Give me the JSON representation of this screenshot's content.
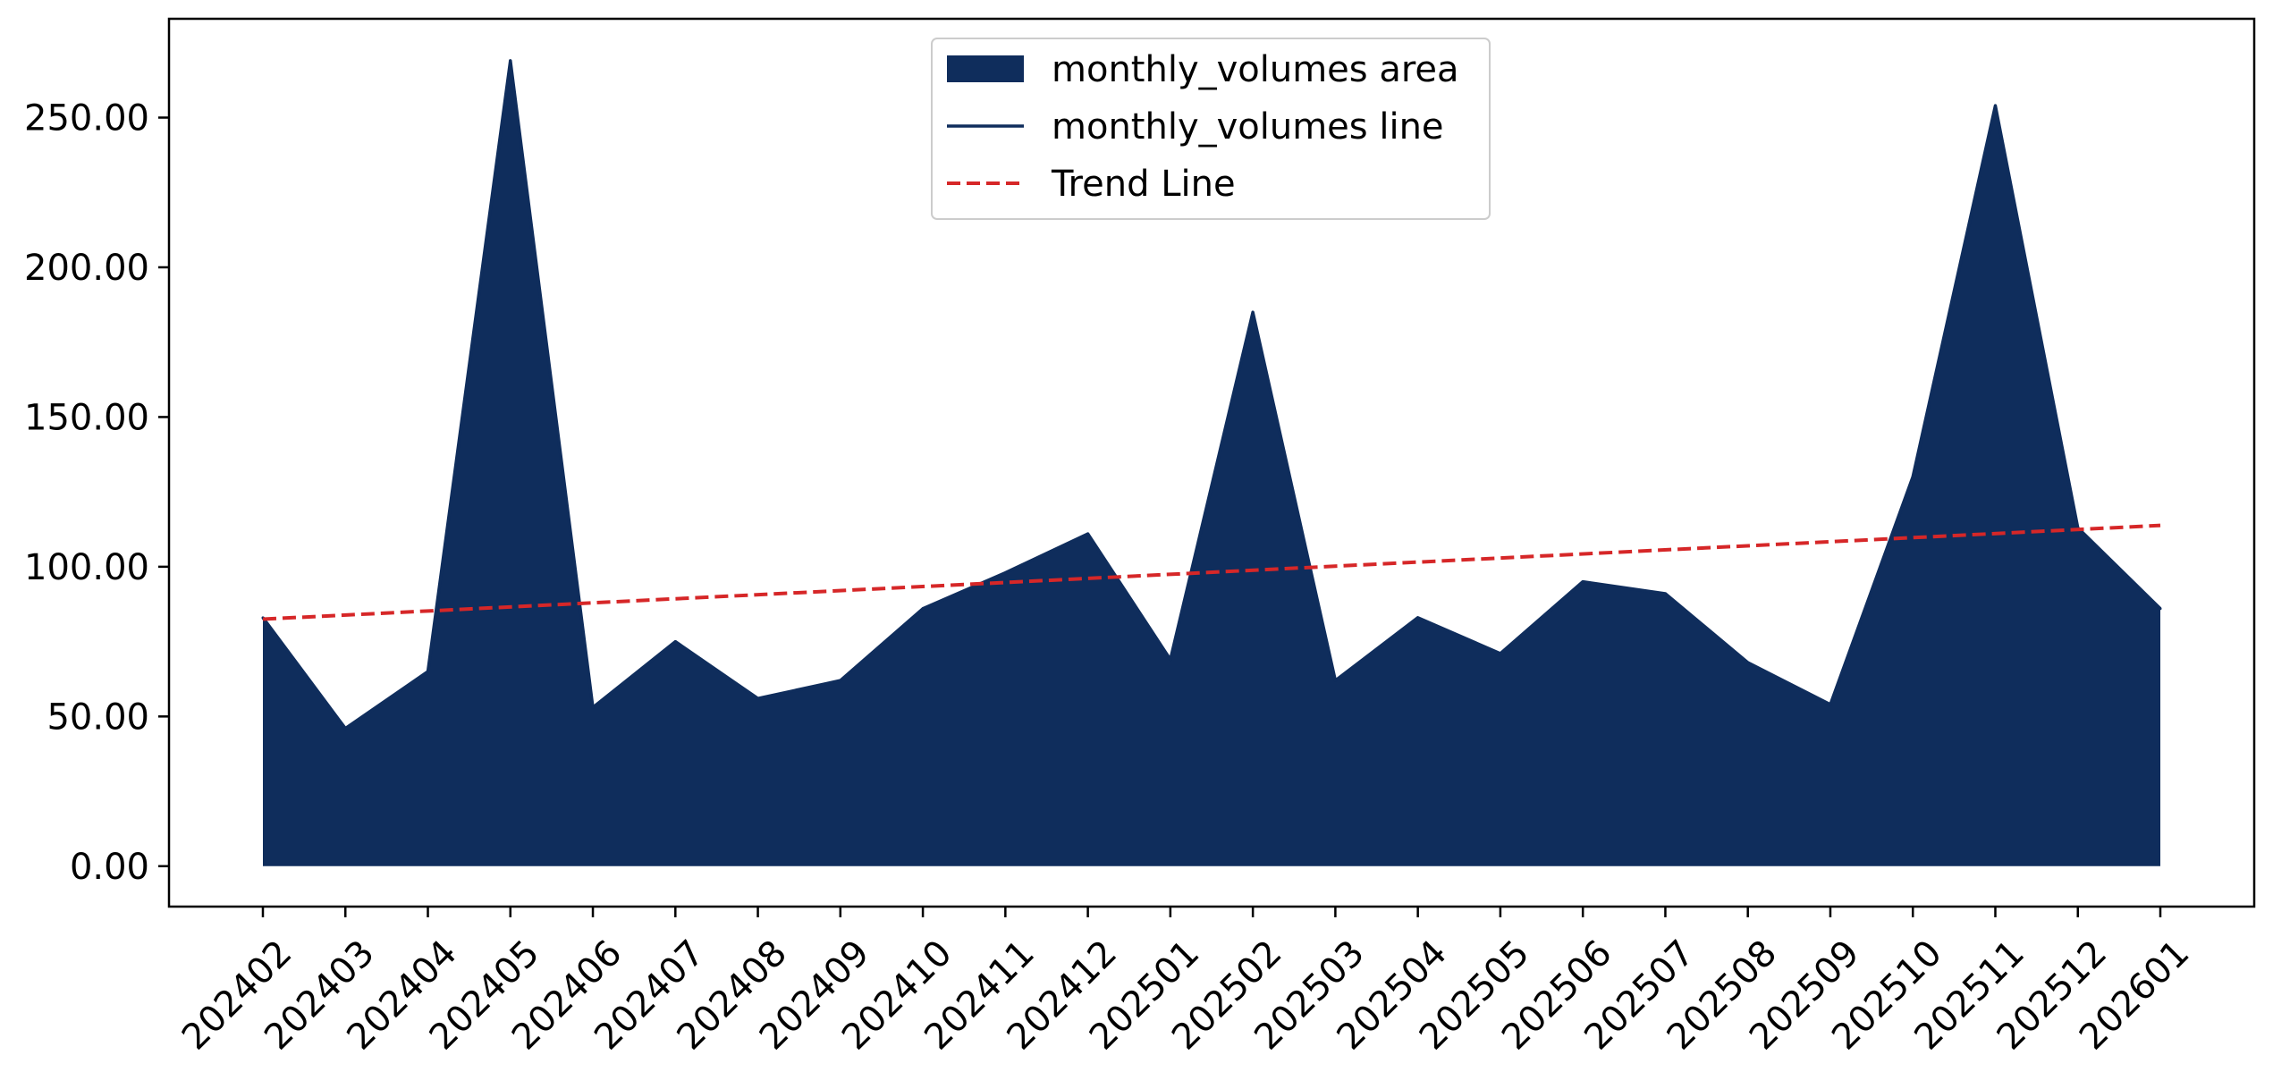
{
  "chart_data": {
    "type": "area",
    "title": "",
    "xlabel": "",
    "ylabel": "",
    "categories": [
      "202402",
      "202403",
      "202404",
      "202405",
      "202406",
      "202407",
      "202408",
      "202409",
      "202410",
      "202411",
      "202412",
      "202501",
      "202502",
      "202503",
      "202504",
      "202505",
      "202506",
      "202507",
      "202508",
      "202509",
      "202510",
      "202511",
      "202512",
      "202601"
    ],
    "series": [
      {
        "name": "monthly_volumes area",
        "kind": "area",
        "color": "#0f2d5c",
        "values": [
          83,
          46,
          65,
          269,
          53,
          75,
          56,
          62,
          86,
          98,
          111,
          69,
          185,
          62,
          83,
          71,
          95,
          91,
          68,
          54,
          130,
          254,
          113,
          86
        ]
      },
      {
        "name": "monthly_volumes line",
        "kind": "line",
        "color": "#0f2d5c",
        "values": [
          83,
          46,
          65,
          269,
          53,
          75,
          56,
          62,
          86,
          98,
          111,
          69,
          185,
          62,
          83,
          71,
          95,
          91,
          68,
          54,
          130,
          254,
          113,
          86
        ]
      },
      {
        "name": "Trend Line",
        "kind": "trend",
        "color": "#d62728",
        "style": "dashed",
        "start": 82.5,
        "end": 113.8
      }
    ],
    "yticks": [
      "0.00",
      "50.00",
      "100.00",
      "150.00",
      "200.00",
      "250.00"
    ],
    "ytick_values": [
      0,
      50,
      100,
      150,
      200,
      250
    ],
    "ylim": [
      -13.5,
      283
    ],
    "grid": false,
    "legend_position": "top-center"
  }
}
